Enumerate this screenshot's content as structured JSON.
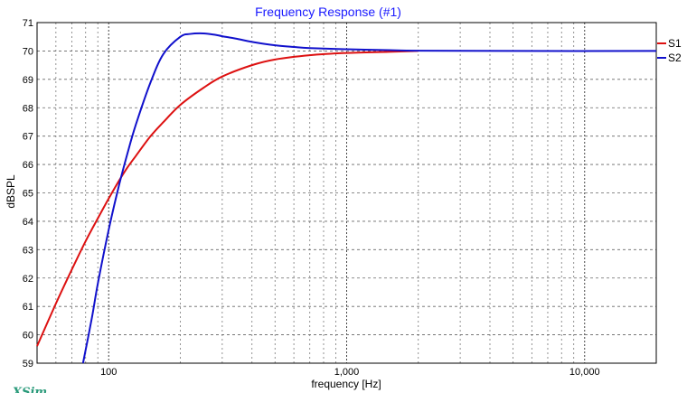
{
  "chart_data": {
    "type": "line",
    "title": "Frequency Response (#1)",
    "xlabel": "frequency [Hz]",
    "ylabel": "dBSPL",
    "x_scale": "log",
    "xlim": [
      50,
      20000
    ],
    "ylim": [
      59,
      71
    ],
    "yticks": [
      59,
      60,
      61,
      62,
      63,
      64,
      65,
      66,
      67,
      68,
      69,
      70,
      71
    ],
    "xtick_labels": [
      {
        "value": 100,
        "label": "100"
      },
      {
        "value": 1000,
        "label": "1,000"
      },
      {
        "value": 10000,
        "label": "10,000"
      }
    ],
    "grid": true,
    "legend_position": "right",
    "series": [
      {
        "name": "S1",
        "color": "#dd1111",
        "x": [
          50,
          60,
          70,
          80,
          90,
          100,
          110,
          120,
          130,
          150,
          170,
          200,
          250,
          300,
          400,
          500,
          700,
          1000,
          1500,
          2000
        ],
        "y": [
          59.6,
          61.1,
          62.3,
          63.3,
          64.1,
          64.8,
          65.4,
          65.9,
          66.3,
          67.0,
          67.5,
          68.1,
          68.7,
          69.1,
          69.5,
          69.7,
          69.85,
          69.93,
          69.97,
          70.0
        ]
      },
      {
        "name": "S2",
        "color": "#1111cc",
        "x": [
          78,
          85,
          90,
          100,
          110,
          120,
          130,
          150,
          170,
          200,
          220,
          250,
          280,
          300,
          350,
          400,
          500,
          600,
          700,
          1000,
          1500,
          2000,
          5000,
          20000
        ],
        "y": [
          59.0,
          60.6,
          61.8,
          63.7,
          65.2,
          66.4,
          67.4,
          68.9,
          69.9,
          70.5,
          70.6,
          70.62,
          70.57,
          70.52,
          70.42,
          70.32,
          70.2,
          70.14,
          70.1,
          70.06,
          70.03,
          70.01,
          70.0,
          70.0
        ]
      }
    ]
  },
  "watermark": "XSim"
}
